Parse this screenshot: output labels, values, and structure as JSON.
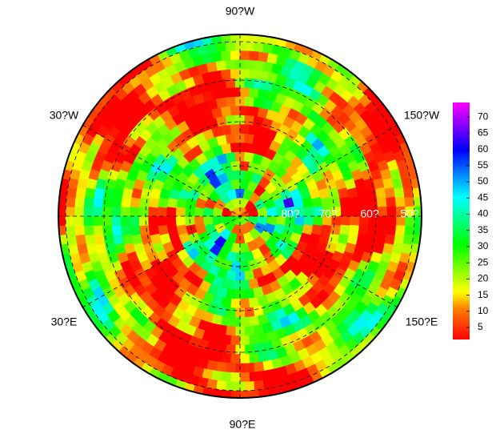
{
  "map": {
    "lon_labels": [
      "90?W",
      "30?W",
      "150?W",
      "30?E",
      "150?E",
      "90?E"
    ],
    "lat_labels": [
      "80?",
      "70?",
      "60?",
      "50?"
    ]
  },
  "colorbar": {
    "lim": [
      1.3,
      74.5
    ],
    "ticks": [
      5,
      10,
      15,
      20,
      25,
      30,
      35,
      40,
      45,
      50,
      55,
      60,
      65,
      70
    ]
  }
}
